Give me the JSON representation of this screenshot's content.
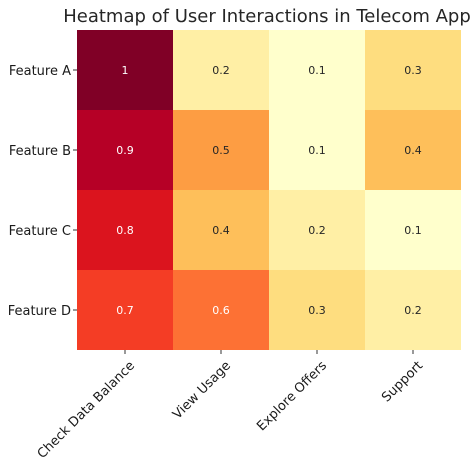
{
  "chart_data": {
    "type": "heatmap",
    "title": "Heatmap of User Interactions in Telecom App",
    "xlabel": "",
    "ylabel": "",
    "rows": [
      "Feature A",
      "Feature B",
      "Feature C",
      "Feature D"
    ],
    "columns": [
      "Check Data Balance",
      "View Usage",
      "Explore Offers",
      "Support"
    ],
    "values": [
      [
        1,
        0.2,
        0.1,
        0.3
      ],
      [
        0.9,
        0.5,
        0.1,
        0.4
      ],
      [
        0.8,
        0.4,
        0.2,
        0.1
      ],
      [
        0.7,
        0.6,
        0.3,
        0.2
      ]
    ],
    "value_labels": [
      [
        "1",
        "0.2",
        "0.1",
        "0.3"
      ],
      [
        "0.9",
        "0.5",
        "0.1",
        "0.4"
      ],
      [
        "0.8",
        "0.4",
        "0.2",
        "0.1"
      ],
      [
        "0.7",
        "0.6",
        "0.3",
        "0.2"
      ]
    ],
    "value_range": [
      0.1,
      1
    ],
    "colormap": "YlOrRd",
    "colormap_stops": [
      "#ffffcc",
      "#ffeda0",
      "#fed976",
      "#feb24c",
      "#fd8d3c",
      "#fc4e2a",
      "#e31a1c",
      "#bd0026",
      "#800026"
    ],
    "cell_text_colors": {
      "light": "#ffffff",
      "dark": "#262626"
    },
    "grid": false,
    "legend": "none"
  }
}
